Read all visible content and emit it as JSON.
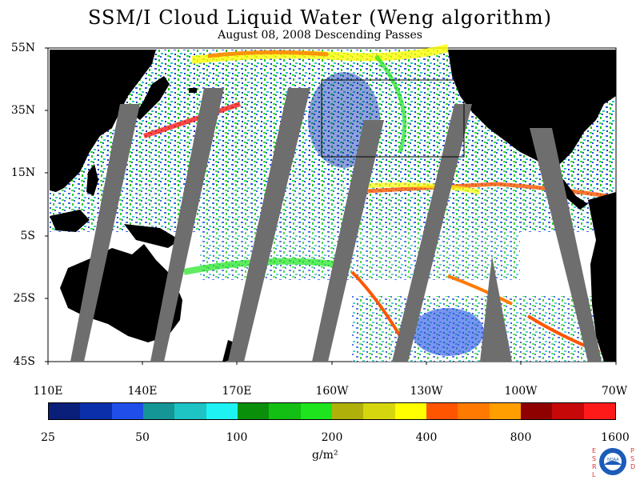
{
  "title": "SSM/I Cloud Liquid Water (Weng algorithm)",
  "subtitle": "August 08, 2008  Descending Passes",
  "lat_labels": [
    "55N",
    "35N",
    "15N",
    "5S",
    "25S",
    "45S"
  ],
  "lon_labels": [
    "110E",
    "140E",
    "170E",
    "160W",
    "130W",
    "100W",
    "70W"
  ],
  "colorbar": {
    "colors": [
      "#0a1f7a",
      "#0b2eaa",
      "#1f4fe8",
      "#159696",
      "#1ec3c3",
      "#1ef2f2",
      "#0a8f0a",
      "#12bf12",
      "#1de41d",
      "#b0b00a",
      "#d6d60f",
      "#ffff00",
      "#ff5500",
      "#ff7a00",
      "#ff9e00",
      "#8f0000",
      "#c60808",
      "#ff1a1a"
    ],
    "ticks": [
      "25",
      "50",
      "100",
      "200",
      "400",
      "800",
      "1600"
    ],
    "units": "g/m²"
  },
  "logo": {
    "left_text": "ESRL",
    "right_text": "PSD",
    "center_text": "NOAA"
  }
}
